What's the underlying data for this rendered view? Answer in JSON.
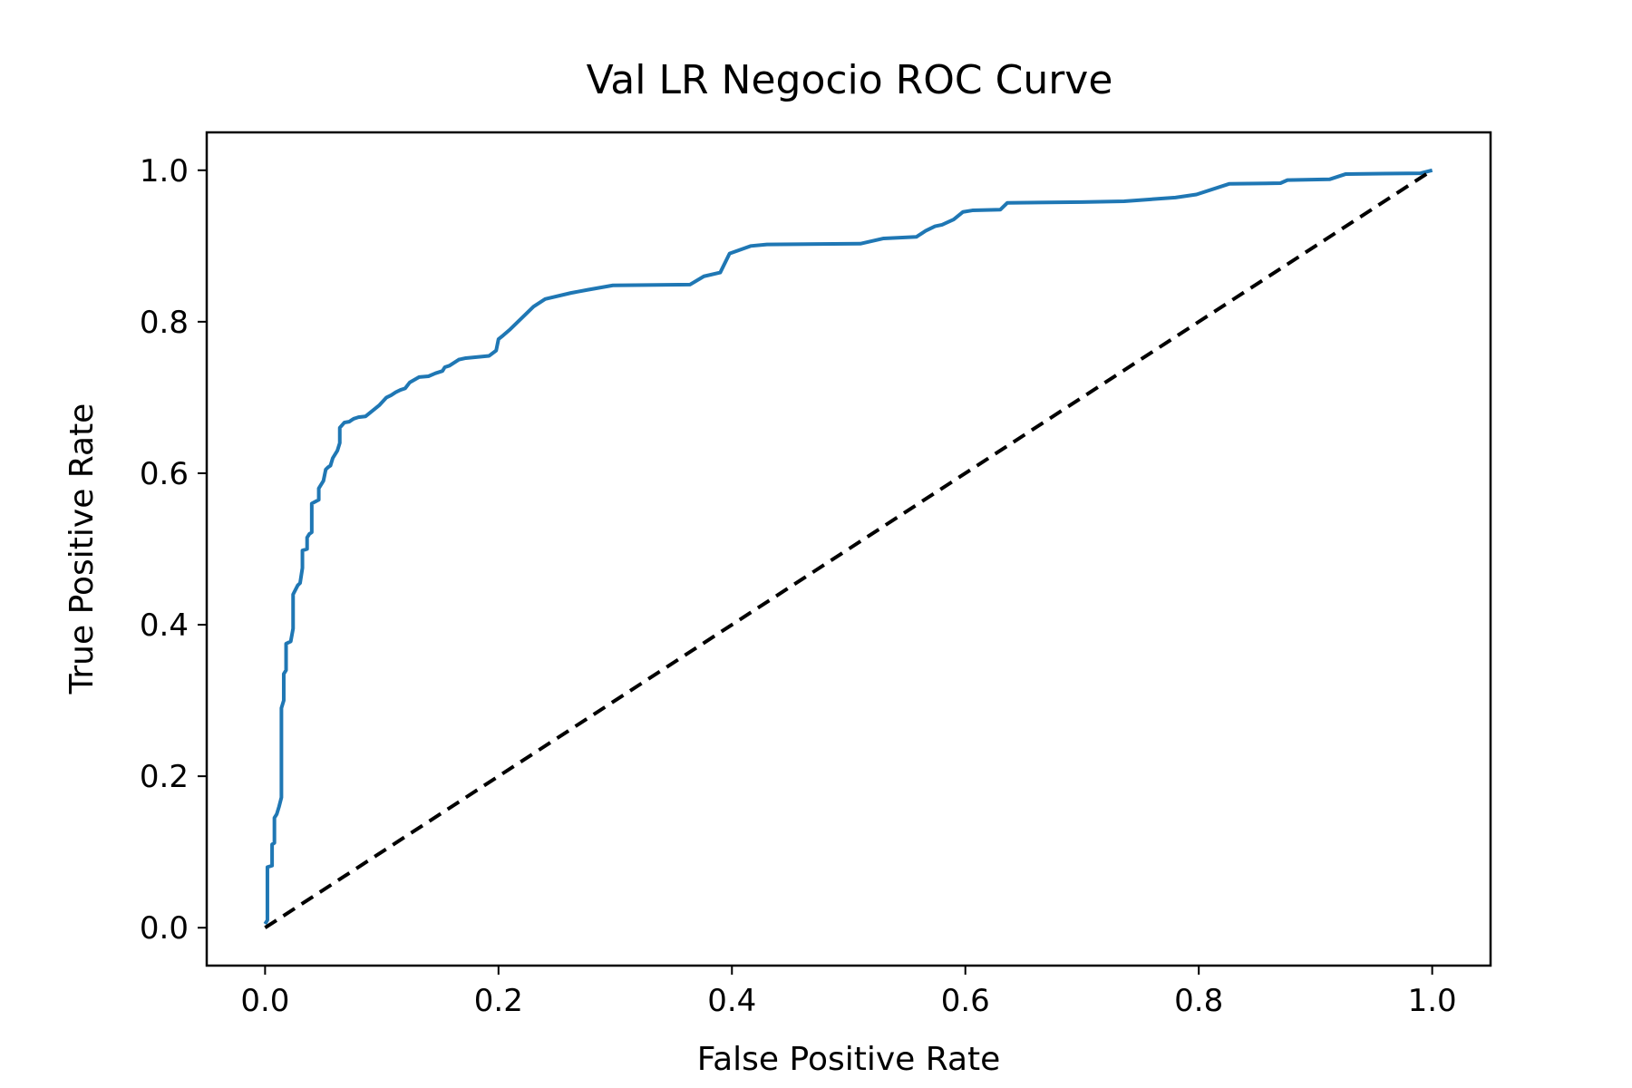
{
  "chart_data": {
    "type": "line",
    "title": "Val LR Negocio ROC Curve",
    "xlabel": "False Positive Rate",
    "ylabel": "True Positive Rate",
    "xlim": [
      -0.05,
      1.05
    ],
    "ylim": [
      -0.05,
      1.05
    ],
    "grid": false,
    "xticks": [
      0.0,
      0.2,
      0.4,
      0.6,
      0.8,
      1.0
    ],
    "xtick_labels": [
      "0.0",
      "0.2",
      "0.4",
      "0.6",
      "0.8",
      "1.0"
    ],
    "yticks": [
      0.0,
      0.2,
      0.4,
      0.6,
      0.8,
      1.0
    ],
    "ytick_labels": [
      "0.0",
      "0.2",
      "0.4",
      "0.6",
      "0.8",
      "1.0"
    ],
    "colors": {
      "roc": "#1f77b4",
      "baseline": "#000000"
    },
    "series": [
      {
        "style": "solid",
        "x": [
          0.0,
          0.002,
          0.002,
          0.006,
          0.006,
          0.008,
          0.008,
          0.01,
          0.012,
          0.014,
          0.014,
          0.016,
          0.016,
          0.018,
          0.018,
          0.022,
          0.024,
          0.024,
          0.028,
          0.03,
          0.032,
          0.032,
          0.036,
          0.036,
          0.038,
          0.04,
          0.04,
          0.046,
          0.046,
          0.05,
          0.052,
          0.054,
          0.056,
          0.058,
          0.062,
          0.064,
          0.064,
          0.068,
          0.072,
          0.074,
          0.076,
          0.078,
          0.08,
          0.086,
          0.098,
          0.104,
          0.108,
          0.112,
          0.116,
          0.12,
          0.124,
          0.132,
          0.14,
          0.146,
          0.152,
          0.154,
          0.158,
          0.166,
          0.172,
          0.192,
          0.198,
          0.2,
          0.204,
          0.21,
          0.23,
          0.24,
          0.262,
          0.276,
          0.298,
          0.364,
          0.376,
          0.39,
          0.398,
          0.416,
          0.43,
          0.51,
          0.53,
          0.558,
          0.566,
          0.574,
          0.58,
          0.59,
          0.598,
          0.606,
          0.63,
          0.636,
          0.7,
          0.736,
          0.78,
          0.798,
          0.826,
          0.87,
          0.876,
          0.912,
          0.926,
          0.99,
          1.0
        ],
        "y": [
          0.005,
          0.01,
          0.08,
          0.082,
          0.11,
          0.112,
          0.145,
          0.15,
          0.16,
          0.172,
          0.29,
          0.3,
          0.335,
          0.34,
          0.375,
          0.378,
          0.395,
          0.44,
          0.452,
          0.455,
          0.475,
          0.498,
          0.5,
          0.515,
          0.52,
          0.522,
          0.56,
          0.565,
          0.58,
          0.59,
          0.605,
          0.608,
          0.61,
          0.62,
          0.63,
          0.64,
          0.66,
          0.667,
          0.668,
          0.67,
          0.672,
          0.673,
          0.674,
          0.675,
          0.69,
          0.7,
          0.703,
          0.707,
          0.71,
          0.712,
          0.72,
          0.727,
          0.728,
          0.732,
          0.735,
          0.74,
          0.742,
          0.75,
          0.752,
          0.755,
          0.762,
          0.777,
          0.782,
          0.79,
          0.82,
          0.83,
          0.838,
          0.842,
          0.848,
          0.849,
          0.86,
          0.865,
          0.89,
          0.9,
          0.902,
          0.903,
          0.91,
          0.912,
          0.92,
          0.926,
          0.928,
          0.935,
          0.945,
          0.947,
          0.948,
          0.957,
          0.958,
          0.959,
          0.964,
          0.968,
          0.982,
          0.983,
          0.987,
          0.988,
          0.995,
          0.996,
          1.0
        ]
      },
      {
        "style": "dashed",
        "x": [
          0.0,
          1.0
        ],
        "y": [
          0.0,
          1.0
        ]
      }
    ]
  }
}
